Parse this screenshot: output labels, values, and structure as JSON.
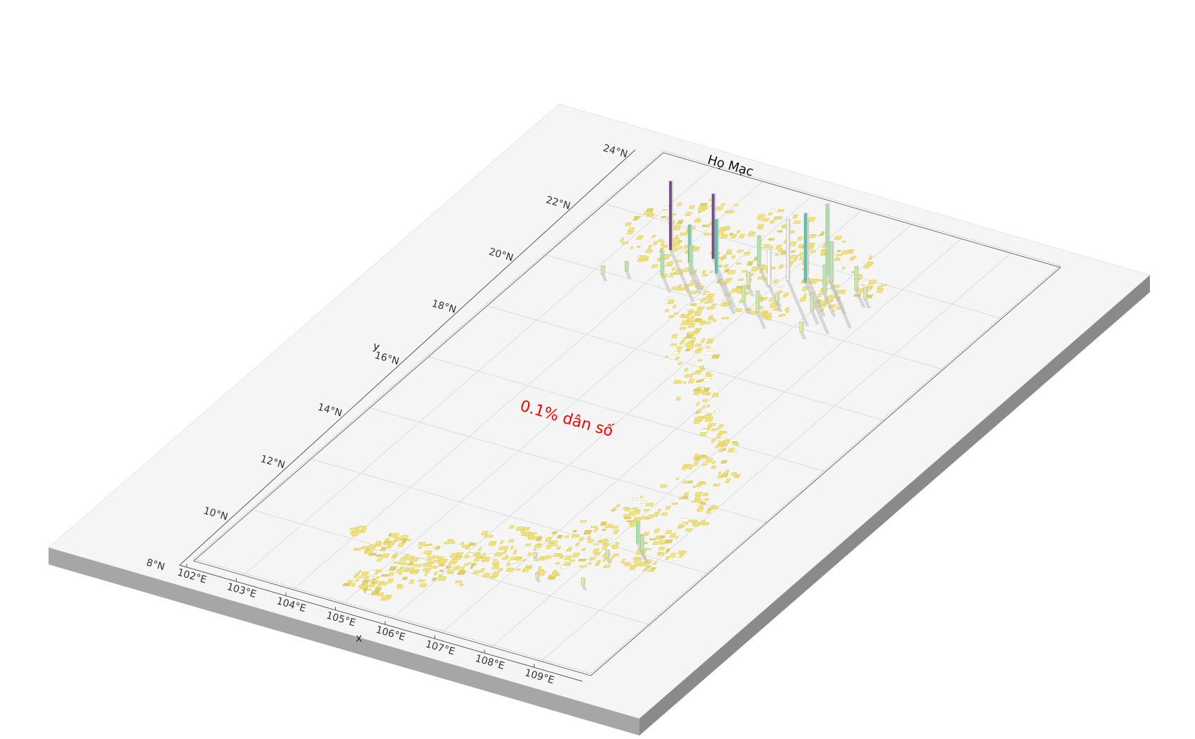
{
  "map": {
    "title": "Họ Mạc",
    "annotation": "0.1% dân số",
    "x_axis_label": "x",
    "y_axis_label": "y",
    "x_ticks": [
      "102°E",
      "103°E",
      "104°E",
      "105°E",
      "106°E",
      "107°E",
      "108°E",
      "109°E"
    ],
    "y_ticks": [
      "8°N",
      "10°N",
      "12°N",
      "14°N",
      "16°N",
      "18°N",
      "20°N",
      "22°N",
      "24°N"
    ],
    "colors": {
      "annotation": "#ff0000",
      "plate_top": "#f5f5f5",
      "plate_front": "#a6a6a6",
      "plate_side": "#8a8a8a",
      "grid": "#dddddd",
      "region_fill": "#f1e27a",
      "low_bar": "#ede07a",
      "mid_bar": "#9fe6a0",
      "high_bar": "#5fbfa7",
      "peak_bar": "#7a4a8f"
    }
  },
  "chart_data": {
    "type": "3d-bar-map",
    "title": "Họ Mạc",
    "xlabel": "x",
    "ylabel": "y",
    "xlim": [
      102,
      110
    ],
    "ylim": [
      8,
      24
    ],
    "annotation": "0.1% dân số",
    "bars": [
      {
        "lon": 103.8,
        "lat": 21.2,
        "h": 0.7,
        "color": "#7a4a8f"
      },
      {
        "lon": 104.6,
        "lat": 21.3,
        "h": 0.66,
        "color": "#7a4a8f"
      },
      {
        "lon": 104.3,
        "lat": 21.0,
        "h": 0.38,
        "color": "#6fcfb0"
      },
      {
        "lon": 104.1,
        "lat": 20.4,
        "h": 0.24,
        "color": "#a8e8a0"
      },
      {
        "lon": 104.9,
        "lat": 20.9,
        "h": 0.55,
        "color": "#5fbfa7"
      },
      {
        "lon": 104.5,
        "lat": 20.7,
        "h": 0.28,
        "color": "#9fe6a0"
      },
      {
        "lon": 103.5,
        "lat": 20.2,
        "h": 0.1,
        "color": "#b8ec9c"
      },
      {
        "lon": 103.2,
        "lat": 19.9,
        "h": 0.09,
        "color": "#cdeea0"
      },
      {
        "lon": 105.4,
        "lat": 21.5,
        "h": 0.3,
        "color": "#a8e8a0"
      },
      {
        "lon": 105.9,
        "lat": 21.0,
        "h": 0.36,
        "color": "#ffffff"
      },
      {
        "lon": 106.1,
        "lat": 21.3,
        "h": 0.62,
        "color": "#f0f0f0"
      },
      {
        "lon": 106.3,
        "lat": 21.6,
        "h": 0.55,
        "color": "#a8e8a0"
      },
      {
        "lon": 106.4,
        "lat": 21.4,
        "h": 0.7,
        "color": "#5fbfa7"
      },
      {
        "lon": 106.6,
        "lat": 21.8,
        "h": 0.72,
        "color": "#9fe6a0"
      },
      {
        "lon": 106.8,
        "lat": 21.6,
        "h": 0.42,
        "color": "#b8ec9c"
      },
      {
        "lon": 105.8,
        "lat": 20.3,
        "h": 0.16,
        "color": "#cdeea0"
      },
      {
        "lon": 106.2,
        "lat": 20.1,
        "h": 0.22,
        "color": "#cdeea0"
      },
      {
        "lon": 106.9,
        "lat": 21.2,
        "h": 0.3,
        "color": "#b8ec9c"
      },
      {
        "lon": 107.3,
        "lat": 21.6,
        "h": 0.24,
        "color": "#c8ec9c"
      },
      {
        "lon": 107.6,
        "lat": 21.4,
        "h": 0.12,
        "color": "#dcee9a"
      },
      {
        "lon": 107.0,
        "lat": 20.6,
        "h": 0.18,
        "color": "#cdeea0"
      },
      {
        "lon": 105.6,
        "lat": 20.8,
        "h": 0.14,
        "color": "#dcee9a"
      },
      {
        "lon": 106.3,
        "lat": 20.6,
        "h": 0.08,
        "color": "#e8ee90"
      },
      {
        "lon": 107.2,
        "lat": 19.9,
        "h": 0.1,
        "color": "#e8ee90"
      },
      {
        "lon": 108.4,
        "lat": 12.3,
        "h": 0.22,
        "color": "#9fe6a0"
      },
      {
        "lon": 108.6,
        "lat": 12.1,
        "h": 0.16,
        "color": "#b8ec9c"
      },
      {
        "lon": 108.2,
        "lat": 11.6,
        "h": 0.08,
        "color": "#dcee9a"
      },
      {
        "lon": 107.1,
        "lat": 11.0,
        "h": 0.05,
        "color": "#e8ee90"
      },
      {
        "lon": 107.5,
        "lat": 10.4,
        "h": 0.05,
        "color": "#e8ee90"
      },
      {
        "lon": 108.3,
        "lat": 10.6,
        "h": 0.07,
        "color": "#e8ee90"
      }
    ]
  }
}
